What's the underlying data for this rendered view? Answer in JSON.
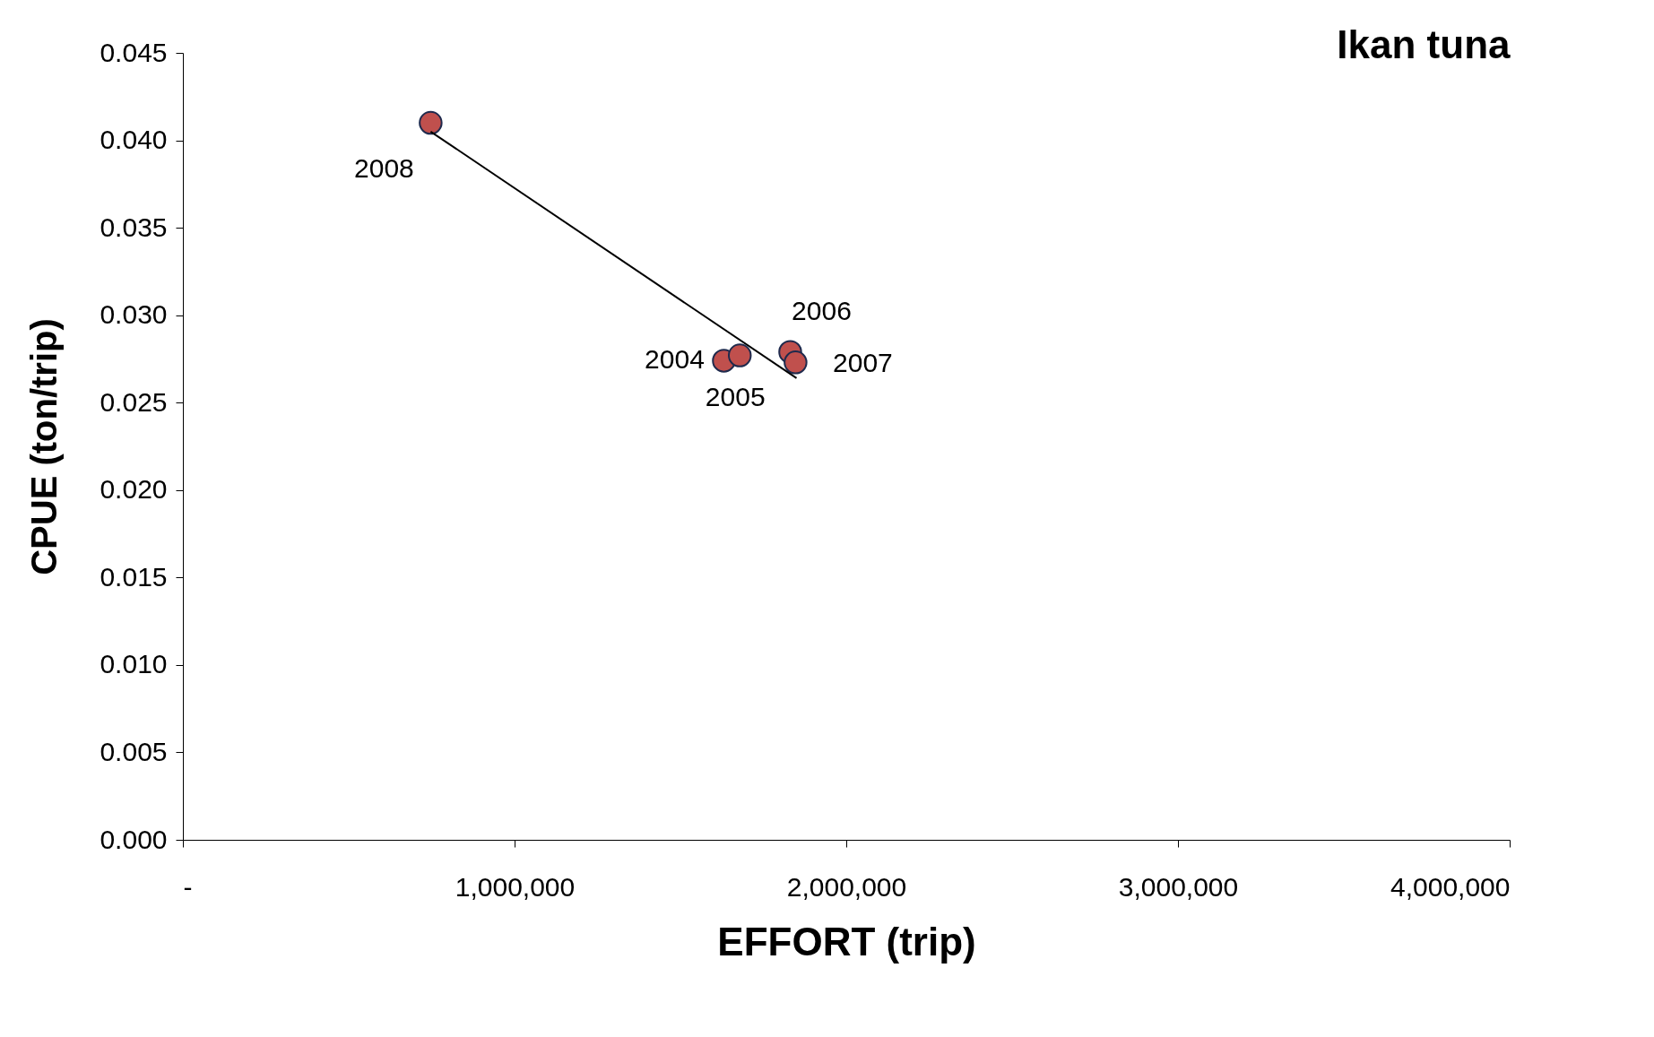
{
  "chart_data": {
    "type": "scatter",
    "title": "Ikan tuna",
    "xlabel": "EFFORT (trip)",
    "ylabel": "CPUE (ton/trip)",
    "series": [
      {
        "color": "#c0504d",
        "marker": "circle",
        "x": [
          1631000,
          1679000,
          1831000,
          1847000,
          747000
        ],
        "values": [
          0.0274,
          0.0277,
          0.0279,
          0.0273,
          0.041
        ]
      },
      {
        "type": "line",
        "color": "#000000",
        "marker": "none",
        "line_style": "solid",
        "x": [
          747000,
          1850000
        ],
        "values": [
          0.0405,
          0.0264
        ]
      }
    ],
    "annotations": [
      {
        "text": "2004",
        "x": 1631000,
        "y": 0.0274
      },
      {
        "text": "2005",
        "x": 1679000,
        "y": 0.0277
      },
      {
        "text": "2006",
        "x": 1831000,
        "y": 0.0279
      },
      {
        "text": "2007",
        "x": 1847000,
        "y": 0.0273
      },
      {
        "text": "2008",
        "x": 747000,
        "y": 0.041
      }
    ],
    "xlim": [
      0,
      4000000
    ],
    "xticks": [
      {
        "value": 0,
        "label": "-"
      },
      {
        "value": 1000000,
        "label": "1,000,000"
      },
      {
        "value": 2000000,
        "label": "2,000,000"
      },
      {
        "value": 3000000,
        "label": "3,000,000"
      },
      {
        "value": 4000000,
        "label": "4,000,000"
      }
    ],
    "ylim": [
      0,
      0.045
    ],
    "yticks": [
      {
        "value": 0,
        "label": "0.000"
      },
      {
        "value": 0.005,
        "label": "0.005"
      },
      {
        "value": 0.01,
        "label": "0.010"
      },
      {
        "value": 0.015,
        "label": "0.015"
      },
      {
        "value": 0.02,
        "label": "0.020"
      },
      {
        "value": 0.025,
        "label": "0.025"
      },
      {
        "value": 0.03,
        "label": "0.030"
      },
      {
        "value": 0.035,
        "label": "0.035"
      },
      {
        "value": 0.04,
        "label": "0.040"
      },
      {
        "value": 0.045,
        "label": "0.045"
      }
    ],
    "grid": false
  }
}
